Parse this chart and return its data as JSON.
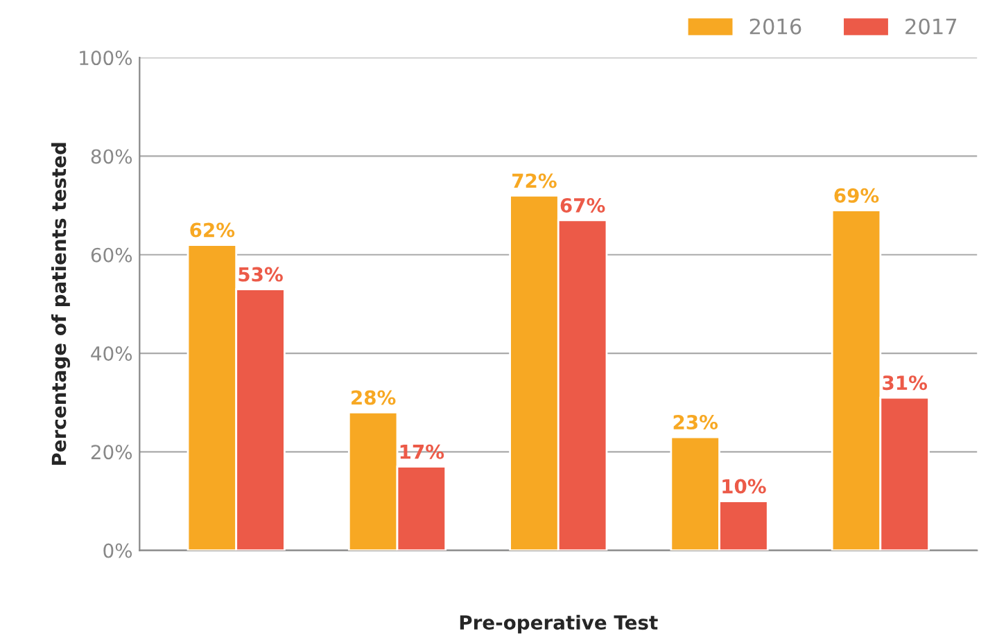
{
  "chart_data": {
    "type": "bar",
    "xlabel": "Pre-operative Test",
    "ylabel": "Percentage of patients tested",
    "categories": [
      null,
      null,
      null,
      null,
      null
    ],
    "series": [
      {
        "name": "2016",
        "color": "#f7a823",
        "values": [
          62,
          28,
          72,
          23,
          69
        ]
      },
      {
        "name": "2017",
        "color": "#ec5a48",
        "values": [
          53,
          17,
          67,
          10,
          31
        ]
      }
    ],
    "ylim": [
      0,
      100
    ],
    "yticks": [
      {
        "value": 0,
        "label": "0%"
      },
      {
        "value": 20,
        "label": "20%"
      },
      {
        "value": 40,
        "label": "40%"
      },
      {
        "value": 60,
        "label": "60%"
      },
      {
        "value": 80,
        "label": "80%"
      },
      {
        "value": 100,
        "label": "100%"
      }
    ],
    "value_labels": [
      [
        "62%",
        "28%",
        "72%",
        "23%",
        "69%"
      ],
      [
        "53%",
        "17%",
        "67%",
        "10%",
        "31%"
      ]
    ],
    "grid": "y",
    "legend": "top right"
  }
}
